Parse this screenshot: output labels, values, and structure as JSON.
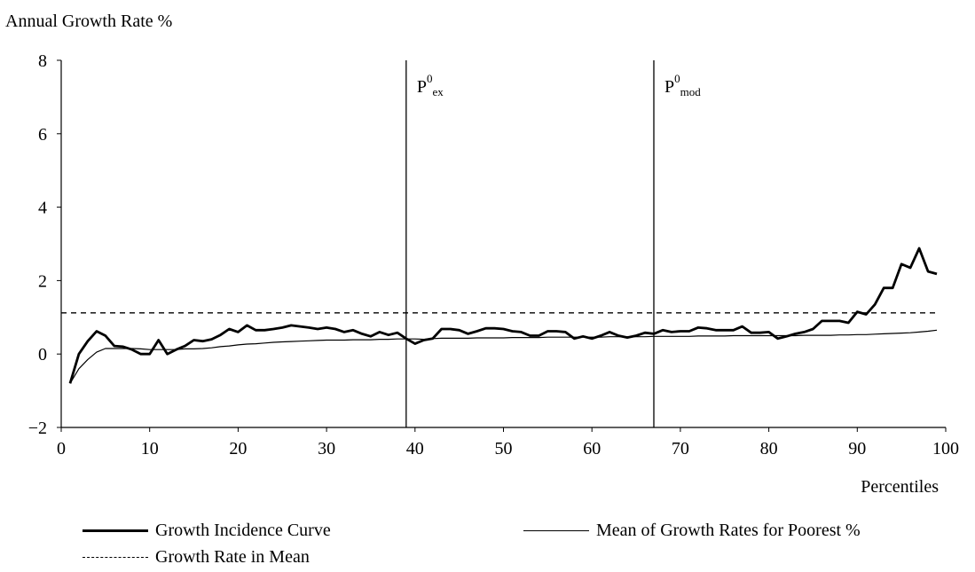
{
  "chart_data": {
    "type": "line",
    "ylabel": "Annual Growth Rate %",
    "xlabel": "Percentiles",
    "xlim": [
      0,
      100
    ],
    "ylim": [
      -2,
      8
    ],
    "xticks": [
      0,
      10,
      20,
      30,
      40,
      50,
      60,
      70,
      80,
      90,
      100
    ],
    "yticks": [
      -2,
      0,
      2,
      4,
      6,
      8
    ],
    "ytick_labels": [
      "−2",
      "0",
      "2",
      "4",
      "6",
      "8"
    ],
    "grid": false,
    "legend_position": "bottom",
    "x": [
      1,
      2,
      3,
      4,
      5,
      6,
      7,
      8,
      9,
      10,
      11,
      12,
      13,
      14,
      15,
      16,
      17,
      18,
      19,
      20,
      21,
      22,
      23,
      24,
      25,
      26,
      27,
      28,
      29,
      30,
      31,
      32,
      33,
      34,
      35,
      36,
      37,
      38,
      39,
      40,
      41,
      42,
      43,
      44,
      45,
      46,
      47,
      48,
      49,
      50,
      51,
      52,
      53,
      54,
      55,
      56,
      57,
      58,
      59,
      60,
      61,
      62,
      63,
      64,
      65,
      66,
      67,
      68,
      69,
      70,
      71,
      72,
      73,
      74,
      75,
      76,
      77,
      78,
      79,
      80,
      81,
      82,
      83,
      84,
      85,
      86,
      87,
      88,
      89,
      90,
      91,
      92,
      93,
      94,
      95,
      96,
      97,
      98,
      99
    ],
    "series": [
      {
        "name": "Growth Incidence Curve",
        "values": [
          -0.8,
          0.0,
          0.35,
          0.62,
          0.5,
          0.22,
          0.2,
          0.12,
          0.0,
          0.0,
          0.38,
          0.0,
          0.12,
          0.22,
          0.38,
          0.35,
          0.4,
          0.52,
          0.68,
          0.6,
          0.78,
          0.65,
          0.65,
          0.68,
          0.72,
          0.78,
          0.75,
          0.72,
          0.68,
          0.72,
          0.68,
          0.6,
          0.65,
          0.55,
          0.48,
          0.6,
          0.52,
          0.58,
          0.42,
          0.28,
          0.38,
          0.42,
          0.68,
          0.68,
          0.65,
          0.55,
          0.62,
          0.7,
          0.7,
          0.68,
          0.62,
          0.6,
          0.5,
          0.5,
          0.62,
          0.62,
          0.6,
          0.42,
          0.48,
          0.42,
          0.5,
          0.6,
          0.5,
          0.45,
          0.5,
          0.58,
          0.55,
          0.65,
          0.6,
          0.62,
          0.62,
          0.72,
          0.7,
          0.65,
          0.65,
          0.65,
          0.75,
          0.58,
          0.58,
          0.6,
          0.42,
          0.48,
          0.55,
          0.6,
          0.68,
          0.9,
          0.9,
          0.9,
          0.85,
          1.15,
          1.08,
          1.35,
          1.8,
          1.8,
          2.45,
          2.35,
          2.88,
          2.25,
          2.18
        ]
      },
      {
        "name": "Mean of Growth Rates for Poorest %",
        "values": [
          -0.8,
          -0.4,
          -0.15,
          0.05,
          0.15,
          0.15,
          0.15,
          0.15,
          0.14,
          0.12,
          0.12,
          0.12,
          0.12,
          0.14,
          0.14,
          0.15,
          0.17,
          0.2,
          0.22,
          0.25,
          0.27,
          0.28,
          0.3,
          0.32,
          0.33,
          0.34,
          0.35,
          0.36,
          0.37,
          0.38,
          0.38,
          0.38,
          0.39,
          0.39,
          0.39,
          0.4,
          0.4,
          0.41,
          0.41,
          0.41,
          0.4,
          0.42,
          0.43,
          0.43,
          0.43,
          0.43,
          0.44,
          0.44,
          0.44,
          0.44,
          0.45,
          0.45,
          0.45,
          0.45,
          0.46,
          0.46,
          0.46,
          0.46,
          0.46,
          0.46,
          0.46,
          0.47,
          0.47,
          0.47,
          0.47,
          0.47,
          0.48,
          0.48,
          0.48,
          0.48,
          0.48,
          0.49,
          0.49,
          0.49,
          0.49,
          0.5,
          0.5,
          0.5,
          0.5,
          0.5,
          0.5,
          0.5,
          0.5,
          0.51,
          0.51,
          0.51,
          0.51,
          0.52,
          0.52,
          0.53,
          0.53,
          0.54,
          0.55,
          0.56,
          0.57,
          0.58,
          0.6,
          0.62,
          0.65
        ]
      },
      {
        "name": "Growth Rate in Mean",
        "constant": 1.12
      }
    ],
    "vlines": [
      {
        "x": 39,
        "label_main": "P",
        "label_sup": "0",
        "label_sub": "ex"
      },
      {
        "x": 67,
        "label_main": "P",
        "label_sup": "0",
        "label_sub": "mod"
      }
    ]
  }
}
